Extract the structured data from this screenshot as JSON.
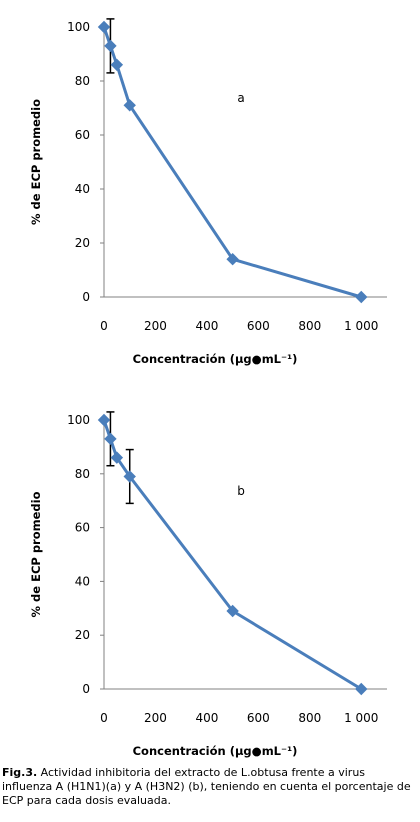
{
  "chart_data": [
    {
      "type": "line",
      "panel_label": "a",
      "xlabel": "Concentración (µg●mL⁻¹)",
      "ylabel": "% de ECP promedio",
      "xlim": [
        0,
        1100
      ],
      "ylim": [
        0,
        100
      ],
      "x_ticks": [
        0,
        200,
        400,
        600,
        800,
        1000
      ],
      "x_tick_labels": [
        "0",
        "200",
        "400",
        "600",
        "800",
        "1 000"
      ],
      "y_ticks": [
        0,
        20,
        40,
        60,
        80,
        100
      ],
      "y_tick_labels": [
        "0",
        "20",
        "40",
        "60",
        "80",
        "100"
      ],
      "grid": false,
      "color": "#4A7EBB",
      "x": [
        0,
        25,
        50,
        100,
        500,
        1000
      ],
      "y": [
        100,
        93,
        86,
        71,
        14,
        0
      ],
      "error_bars": [
        {
          "x": 25,
          "low": 83,
          "high": 103
        }
      ]
    },
    {
      "type": "line",
      "panel_label": "b",
      "xlabel": "Concentración (µg●mL⁻¹)",
      "ylabel": "% de ECP promedio",
      "xlim": [
        0,
        1100
      ],
      "ylim": [
        0,
        100
      ],
      "x_ticks": [
        0,
        200,
        400,
        600,
        800,
        1000
      ],
      "x_tick_labels": [
        "0",
        "200",
        "400",
        "600",
        "800",
        "1 000"
      ],
      "y_ticks": [
        0,
        20,
        40,
        60,
        80,
        100
      ],
      "y_tick_labels": [
        "0",
        "20",
        "40",
        "60",
        "80",
        "100"
      ],
      "grid": false,
      "color": "#4A7EBB",
      "x": [
        0,
        25,
        50,
        100,
        500,
        1000
      ],
      "y": [
        100,
        93,
        86,
        79,
        29,
        0
      ],
      "error_bars": [
        {
          "x": 25,
          "low": 83,
          "high": 103
        },
        {
          "x": 100,
          "low": 69,
          "high": 89
        }
      ]
    }
  ],
  "caption": {
    "label": "Fig.3.",
    "text": " Actividad inhibitoria del extracto de L.obtusa frente a virus influenza A (H1N1)(a) y A (H3N2) (b), teniendo en cuenta el porcentaje de ECP para cada dosis evaluada."
  }
}
